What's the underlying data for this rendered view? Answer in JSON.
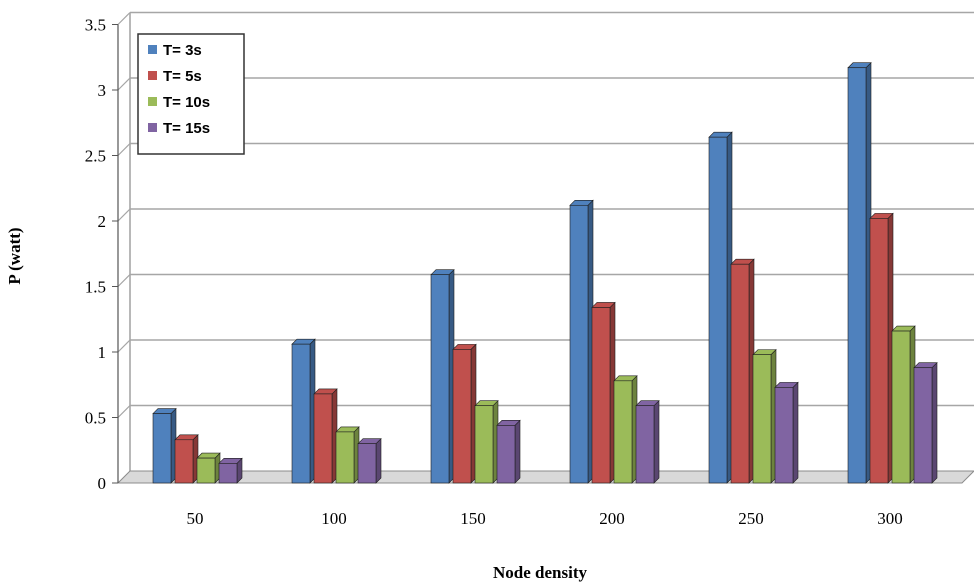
{
  "chart_data": {
    "type": "bar",
    "title": "",
    "xlabel": "Node density",
    "ylabel": "P (watt)",
    "categories": [
      "50",
      "100",
      "150",
      "200",
      "250",
      "300"
    ],
    "ylim": [
      0,
      3.5
    ],
    "yticks": [
      "0",
      "0.5",
      "1",
      "1.5",
      "2",
      "2.5",
      "3",
      "3.5"
    ],
    "grid": true,
    "legend_position": "top-left",
    "series": [
      {
        "name": "T= 3s",
        "color": "#4F81BD",
        "values": [
          0.53,
          1.06,
          1.59,
          2.12,
          2.64,
          3.17
        ]
      },
      {
        "name": "T= 5s",
        "color": "#C0504D",
        "values": [
          0.33,
          0.68,
          1.02,
          1.34,
          1.67,
          2.02
        ]
      },
      {
        "name": "T= 10s",
        "color": "#9BBB59",
        "values": [
          0.19,
          0.39,
          0.59,
          0.78,
          0.98,
          1.16
        ]
      },
      {
        "name": "T= 15s",
        "color": "#8064A2",
        "values": [
          0.15,
          0.3,
          0.44,
          0.59,
          0.73,
          0.88
        ]
      }
    ]
  }
}
